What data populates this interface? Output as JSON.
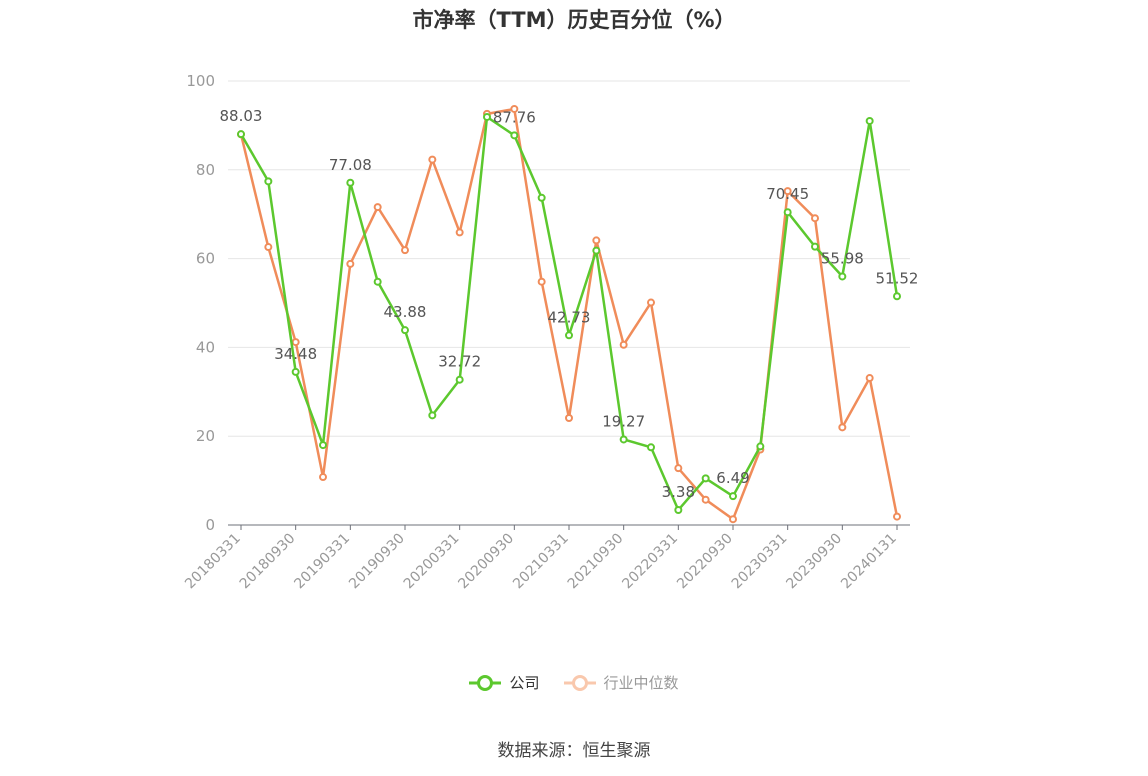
{
  "chart_data": {
    "type": "line",
    "title": "市净率（TTM）历史百分位（%）",
    "x": [
      "20180331",
      "20180630",
      "20180930",
      "20181231",
      "20190331",
      "20190630",
      "20190930",
      "20191231",
      "20200331",
      "20200630",
      "20200930",
      "20201231",
      "20210331",
      "20210630",
      "20210930",
      "20211231",
      "20220331",
      "20220630",
      "20220930",
      "20221231",
      "20230331",
      "20230630",
      "20230930",
      "20231231",
      "20240131"
    ],
    "x_tick_labels": [
      "20180331",
      "20180930",
      "20190331",
      "20190930",
      "20200331",
      "20200930",
      "20210331",
      "20210930",
      "20220331",
      "20220930",
      "20230331",
      "20230930",
      "20240131"
    ],
    "y_ticks": [
      "0",
      "20",
      "40",
      "60",
      "80",
      "100"
    ],
    "ylim": [
      0,
      100
    ],
    "grid": true,
    "legend_position": "bottom",
    "series": [
      {
        "name": "公司",
        "color": "#5cc82e",
        "values": [
          88.03,
          77.4,
          34.48,
          18.0,
          77.08,
          54.8,
          43.88,
          24.7,
          32.72,
          91.9,
          87.76,
          73.7,
          42.73,
          61.8,
          19.27,
          17.5,
          3.38,
          10.5,
          6.49,
          17.7,
          70.45,
          62.7,
          55.98,
          91.0,
          51.52
        ],
        "labels": {
          "0": "88.03",
          "2": "34.48",
          "4": "77.08",
          "6": "43.88",
          "8": "32.72",
          "10": "87.76",
          "12": "42.73",
          "14": "19.27",
          "16": "3.38",
          "18": "6.49",
          "20": "70.45",
          "22": "55.98",
          "24": "51.52"
        }
      },
      {
        "name": "行业中位数",
        "color": "#f08c5a",
        "values": [
          88.0,
          62.6,
          41.2,
          10.8,
          58.8,
          71.6,
          61.9,
          82.3,
          65.9,
          92.6,
          93.7,
          54.8,
          24.1,
          64.1,
          40.6,
          50.1,
          12.8,
          5.7,
          1.3,
          17.0,
          75.2,
          69.1,
          22.0,
          33.1,
          1.9
        ]
      }
    ]
  },
  "source_note": "数据来源：恒生聚源"
}
